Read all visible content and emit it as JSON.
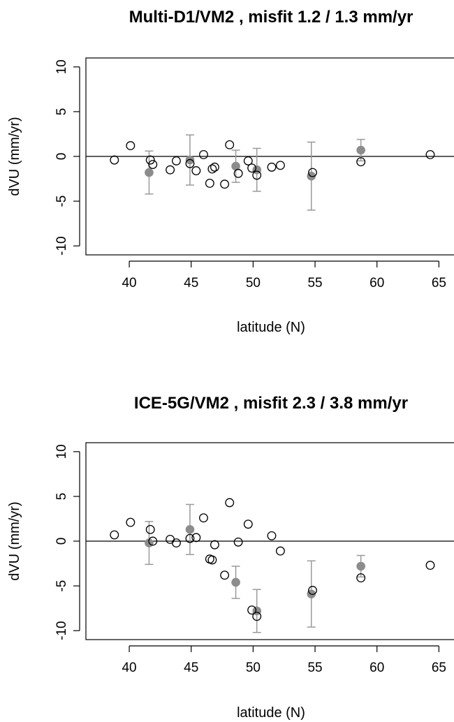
{
  "chart_data": [
    {
      "type": "scatter",
      "title": "Multi-D1/VM2 , misfit 1.2 / 1.3 mm/yr",
      "xlabel": "latitude (N)",
      "ylabel": "dVU (mm/yr)",
      "xlim": [
        36.5,
        66.5
      ],
      "ylim": [
        -11,
        11
      ],
      "xticks": [
        40,
        45,
        50,
        55,
        60,
        65
      ],
      "yticks": [
        -10,
        -5,
        0,
        5,
        10
      ],
      "x_tick_labels": [
        "40",
        "45",
        "50",
        "55",
        "60",
        "65"
      ],
      "y_tick_labels": [
        "-10",
        "-5",
        "0",
        "5",
        "10"
      ],
      "reference_line_y": 0,
      "grid": false,
      "series": [
        {
          "marker": "open-circle",
          "color": "#000000",
          "points": [
            {
              "x": 38.8,
              "y": -0.4
            },
            {
              "x": 40.1,
              "y": 1.2
            },
            {
              "x": 41.7,
              "y": -0.4
            },
            {
              "x": 41.9,
              "y": -0.9
            },
            {
              "x": 43.3,
              "y": -1.5
            },
            {
              "x": 43.8,
              "y": -0.5
            },
            {
              "x": 44.9,
              "y": -0.8
            },
            {
              "x": 45.4,
              "y": -1.6
            },
            {
              "x": 46.0,
              "y": 0.2
            },
            {
              "x": 46.5,
              "y": -3.0
            },
            {
              "x": 46.7,
              "y": -1.4
            },
            {
              "x": 46.9,
              "y": -1.2
            },
            {
              "x": 47.7,
              "y": -3.1
            },
            {
              "x": 48.1,
              "y": 1.3
            },
            {
              "x": 48.8,
              "y": -1.9
            },
            {
              "x": 49.6,
              "y": -0.5
            },
            {
              "x": 49.9,
              "y": -1.3
            },
            {
              "x": 50.3,
              "y": -2.1
            },
            {
              "x": 51.5,
              "y": -1.2
            },
            {
              "x": 52.2,
              "y": -1.0
            },
            {
              "x": 54.8,
              "y": -1.8
            },
            {
              "x": 58.7,
              "y": -0.6
            },
            {
              "x": 64.3,
              "y": 0.2
            }
          ]
        },
        {
          "marker": "filled-circle-with-errorbar",
          "color": "#8c8c8c",
          "points": [
            {
              "x": 41.6,
              "y": -1.8,
              "err": 2.4
            },
            {
              "x": 44.9,
              "y": -0.4,
              "err": 2.8
            },
            {
              "x": 48.6,
              "y": -1.1,
              "err": 1.8
            },
            {
              "x": 50.3,
              "y": -1.5,
              "err": 2.4
            },
            {
              "x": 54.7,
              "y": -2.2,
              "err": 3.8
            },
            {
              "x": 58.7,
              "y": 0.7,
              "err": 1.2
            }
          ]
        }
      ]
    },
    {
      "type": "scatter",
      "title": "ICE-5G/VM2 , misfit 2.3 / 3.8 mm/yr",
      "xlabel": "latitude (N)",
      "ylabel": "dVU (mm/yr)",
      "xlim": [
        36.5,
        66.5
      ],
      "ylim": [
        -11,
        11
      ],
      "xticks": [
        40,
        45,
        50,
        55,
        60,
        65
      ],
      "yticks": [
        -10,
        -5,
        0,
        5,
        10
      ],
      "x_tick_labels": [
        "40",
        "45",
        "50",
        "55",
        "60",
        "65"
      ],
      "y_tick_labels": [
        "-10",
        "-5",
        "0",
        "5",
        "10"
      ],
      "reference_line_y": 0,
      "grid": false,
      "series": [
        {
          "marker": "open-circle",
          "color": "#000000",
          "points": [
            {
              "x": 38.8,
              "y": 0.7
            },
            {
              "x": 40.1,
              "y": 2.1
            },
            {
              "x": 41.7,
              "y": 1.3
            },
            {
              "x": 41.9,
              "y": 0.0
            },
            {
              "x": 43.3,
              "y": 0.2
            },
            {
              "x": 43.8,
              "y": -0.2
            },
            {
              "x": 44.9,
              "y": 0.3
            },
            {
              "x": 45.4,
              "y": 0.4
            },
            {
              "x": 46.0,
              "y": 2.6
            },
            {
              "x": 46.5,
              "y": -2.0
            },
            {
              "x": 46.7,
              "y": -2.1
            },
            {
              "x": 46.9,
              "y": -0.4
            },
            {
              "x": 47.7,
              "y": -3.8
            },
            {
              "x": 48.1,
              "y": 4.3
            },
            {
              "x": 48.8,
              "y": -0.1
            },
            {
              "x": 49.6,
              "y": 1.9
            },
            {
              "x": 49.9,
              "y": -7.7
            },
            {
              "x": 50.3,
              "y": -8.4
            },
            {
              "x": 51.5,
              "y": 0.6
            },
            {
              "x": 52.2,
              "y": -1.1
            },
            {
              "x": 54.8,
              "y": -5.5
            },
            {
              "x": 58.7,
              "y": -4.1
            },
            {
              "x": 64.3,
              "y": -2.7
            }
          ]
        },
        {
          "marker": "filled-circle-with-errorbar",
          "color": "#8c8c8c",
          "points": [
            {
              "x": 41.6,
              "y": -0.2,
              "err": 2.4
            },
            {
              "x": 44.9,
              "y": 1.3,
              "err": 2.8
            },
            {
              "x": 48.6,
              "y": -4.6,
              "err": 1.8
            },
            {
              "x": 50.3,
              "y": -7.8,
              "err": 2.4
            },
            {
              "x": 54.7,
              "y": -5.9,
              "err": 3.7
            },
            {
              "x": 58.7,
              "y": -2.8,
              "err": 1.2
            }
          ]
        }
      ]
    }
  ]
}
